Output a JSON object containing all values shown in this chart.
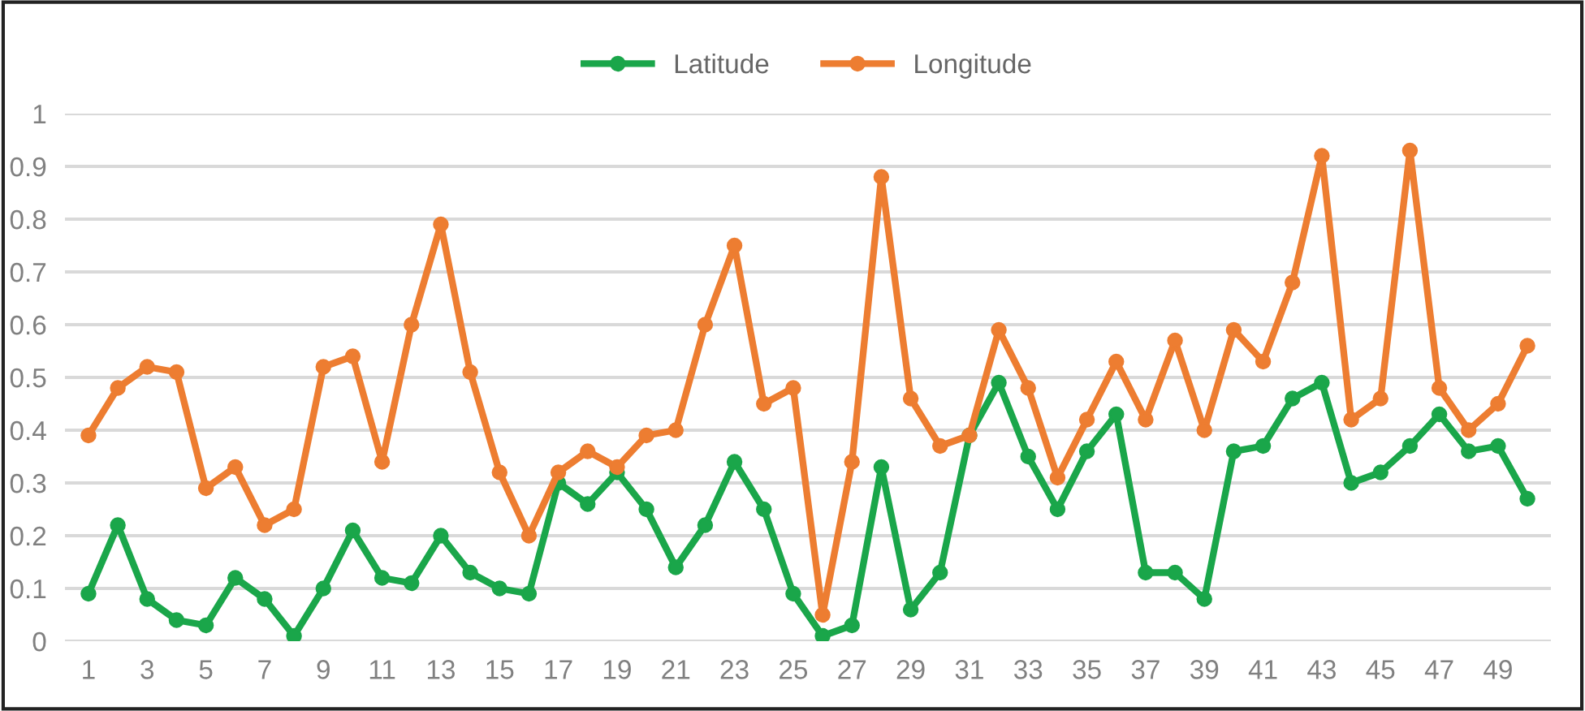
{
  "chart_data": {
    "type": "line",
    "categories": [
      "1",
      null,
      "3",
      null,
      "5",
      null,
      "7",
      null,
      "9",
      null,
      "11",
      null,
      "13",
      null,
      "15",
      null,
      "17",
      null,
      "19",
      null,
      "21",
      null,
      "23",
      null,
      "25",
      null,
      "27",
      null,
      "29",
      null,
      "31",
      null,
      "33",
      null,
      "35",
      null,
      "37",
      null,
      "39",
      null,
      "41",
      null,
      "43",
      null,
      "45",
      null,
      "47",
      null,
      "49",
      null
    ],
    "series": [
      {
        "name": "Latitude",
        "color": "#1aa64a",
        "values": [
          0.09,
          0.22,
          0.08,
          0.04,
          0.03,
          0.12,
          0.08,
          0.01,
          0.1,
          0.21,
          0.12,
          0.11,
          0.2,
          0.13,
          0.1,
          0.09,
          0.3,
          0.26,
          0.32,
          0.25,
          0.14,
          0.22,
          0.34,
          0.25,
          0.09,
          0.01,
          0.03,
          0.33,
          0.06,
          0.13,
          0.39,
          0.49,
          0.35,
          0.25,
          0.36,
          0.43,
          0.13,
          0.13,
          0.08,
          0.36,
          0.37,
          0.46,
          0.49,
          0.3,
          0.32,
          0.37,
          0.43,
          0.36,
          0.37,
          0.27
        ]
      },
      {
        "name": "Longitude",
        "color": "#ed7d31",
        "values": [
          0.39,
          0.48,
          0.52,
          0.51,
          0.29,
          0.33,
          0.22,
          0.25,
          0.52,
          0.54,
          0.34,
          0.6,
          0.79,
          0.51,
          0.32,
          0.2,
          0.32,
          0.36,
          0.33,
          0.39,
          0.4,
          0.6,
          0.75,
          0.45,
          0.48,
          0.05,
          0.34,
          0.88,
          0.46,
          0.37,
          0.39,
          0.59,
          0.48,
          0.31,
          0.42,
          0.53,
          0.42,
          0.57,
          0.4,
          0.59,
          0.53,
          0.68,
          0.92,
          0.42,
          0.46,
          0.93,
          0.48,
          0.4,
          0.45,
          0.56
        ]
      }
    ],
    "ylim": [
      0,
      1
    ],
    "yticks": [
      0,
      0.1,
      0.2,
      0.3,
      0.4,
      0.5,
      0.6,
      0.7,
      0.8,
      0.9,
      1
    ],
    "grid": "y",
    "legend": "top",
    "marker": "circle",
    "line_style": "solid"
  }
}
